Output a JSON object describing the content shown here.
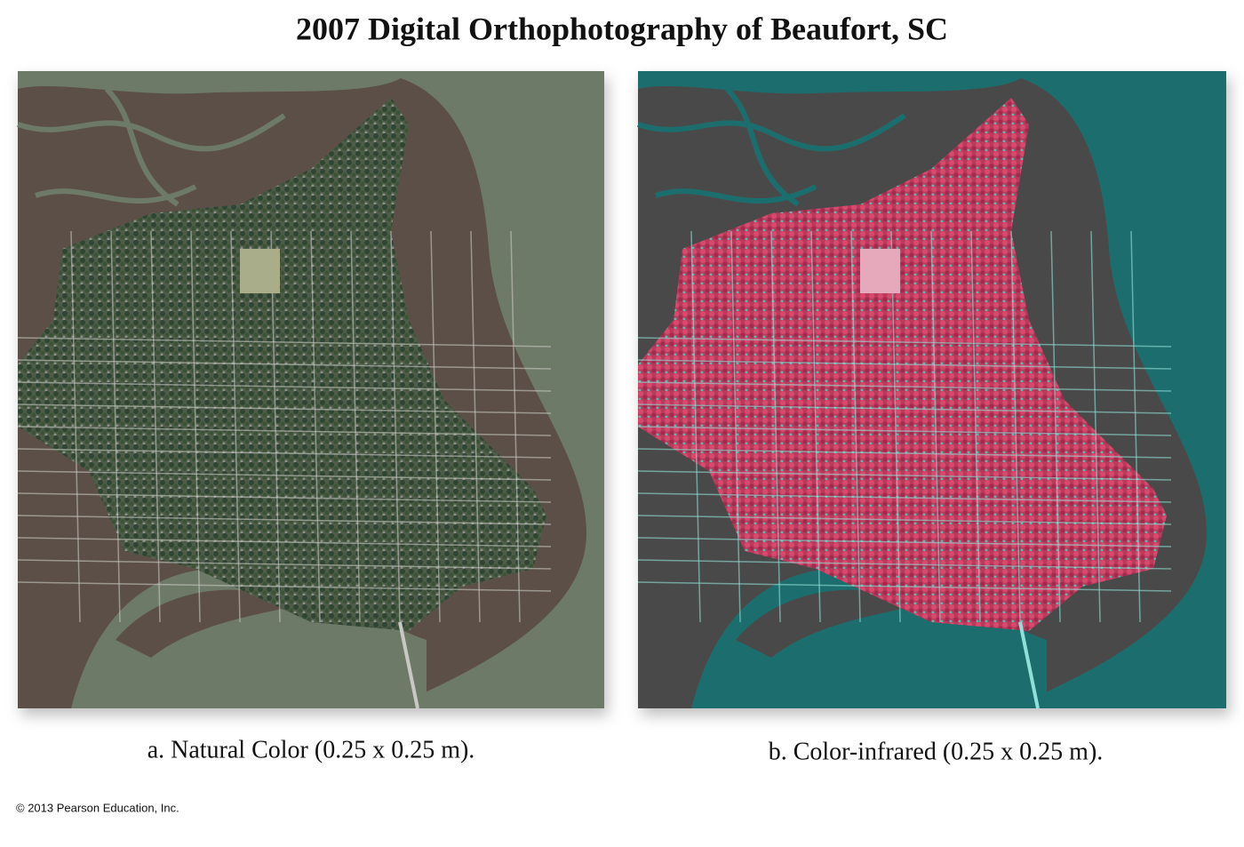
{
  "title": "2007 Digital Orthophotography of Beaufort, SC",
  "panels": [
    {
      "caption": "a. Natural Color  (0.25 x 0.25 m)."
    },
    {
      "caption": "b. Color-infrared (0.25 x 0.25 m)."
    }
  ],
  "copyright": "© 2013 Pearson Education, Inc."
}
